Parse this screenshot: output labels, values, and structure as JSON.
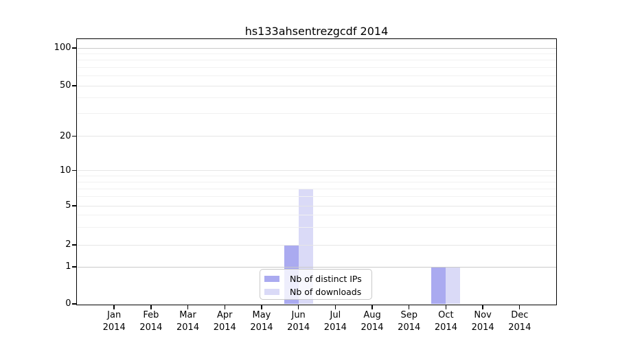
{
  "chart_data": {
    "type": "bar",
    "title": "hs133ahsentrezgcdf 2014",
    "categories": [
      "Jan",
      "Feb",
      "Mar",
      "Apr",
      "May",
      "Jun",
      "Jul",
      "Aug",
      "Sep",
      "Oct",
      "Nov",
      "Dec"
    ],
    "x_year_label": "2014",
    "series": [
      {
        "name": "Nb of distinct IPs",
        "color": "#aaaaf0",
        "values": [
          0,
          0,
          0,
          0,
          0,
          2,
          0,
          0,
          0,
          1,
          0,
          0
        ]
      },
      {
        "name": "Nb of downloads",
        "color": "#dadaf7",
        "values": [
          0,
          0,
          0,
          0,
          0,
          7,
          0,
          0,
          0,
          1,
          0,
          0
        ]
      }
    ],
    "y_axis": {
      "ticks": [
        0,
        1,
        2,
        5,
        10,
        20,
        50,
        100
      ],
      "minor_ticks": [
        3,
        4,
        6,
        7,
        8,
        9,
        30,
        40,
        60,
        70,
        80,
        90
      ],
      "scale": "log-like",
      "range": [
        0,
        100
      ]
    },
    "grid": true,
    "legend_position": "bottom-center"
  },
  "style": {
    "background": "#ffffff",
    "axis_color": "#000000",
    "grid_strong": "#c9c9c9",
    "grid_major": "#e6e6e6",
    "grid_minor": "#f1f1f1",
    "bar_ips_color": "#aaaaf0",
    "bar_downloads_color": "#dadaf7"
  }
}
